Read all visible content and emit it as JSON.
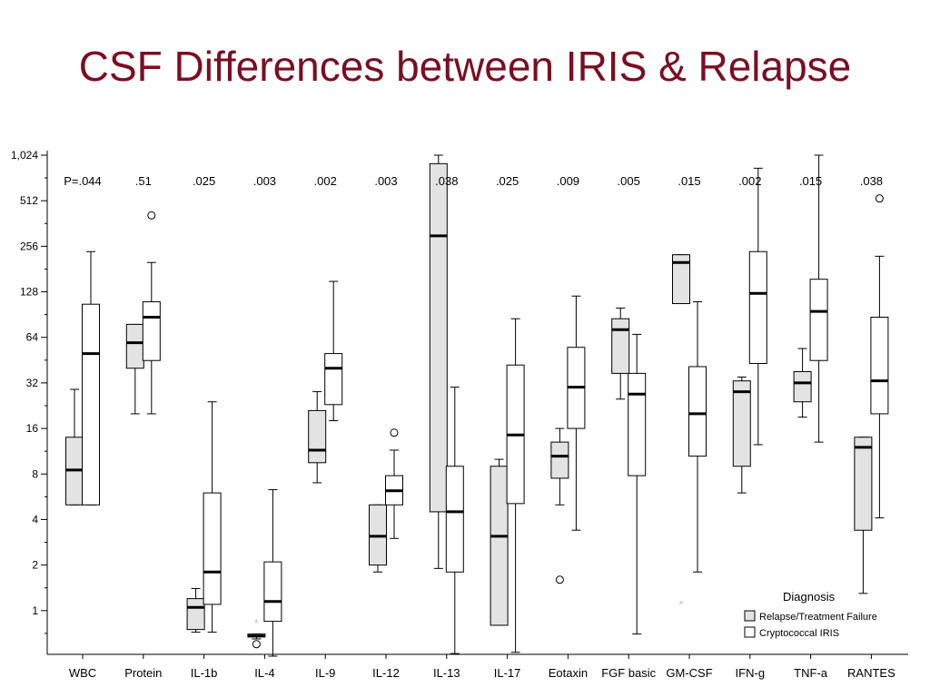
{
  "slide": {
    "title": "CSF Differences between IRIS & Relapse"
  },
  "chart_data": {
    "type": "boxplot",
    "y_scale": "log2",
    "ylim": [
      0.5,
      1024
    ],
    "y_ticks": [
      {
        "value": 1,
        "label": "1"
      },
      {
        "value": 2,
        "label": "2"
      },
      {
        "value": 4,
        "label": "4"
      },
      {
        "value": 8,
        "label": "8"
      },
      {
        "value": 16,
        "label": "16"
      },
      {
        "value": 32,
        "label": "32"
      },
      {
        "value": 64,
        "label": "64"
      },
      {
        "value": 128,
        "label": "128"
      },
      {
        "value": 256,
        "label": "256"
      },
      {
        "value": 512,
        "label": "512"
      },
      {
        "value": 1024,
        "label": "1,024"
      }
    ],
    "legend": {
      "title": "Diagnosis",
      "position": "bottom-right",
      "colors": [
        "#e3e3e3",
        "#ffffff"
      ]
    },
    "series_names": [
      "Relapse/Treatment Failure",
      "Cryptococcal IRIS"
    ],
    "categories": [
      "WBC",
      "Protein",
      "IL-1b",
      "IL-4",
      "IL-9",
      "IL-12",
      "IL-13",
      "IL-17",
      "Eotaxin",
      "FGF basic",
      "GM-CSF",
      "IFN-g",
      "TNF-a",
      "RANTES"
    ],
    "p_values": [
      "P=.044",
      ".51",
      ".025",
      ".003",
      ".002",
      ".003",
      ".038",
      ".025",
      ".009",
      ".005",
      ".015",
      ".002",
      ".015",
      ".038"
    ],
    "groups": [
      {
        "category": "WBC",
        "relapse": {
          "min": 5,
          "q1": 5,
          "median": 8.5,
          "q3": 14,
          "max": 29,
          "outliers": [],
          "extremes": []
        },
        "iris": {
          "min": 5,
          "q1": 5,
          "median": 50,
          "q3": 106,
          "max": 236,
          "outliers": [],
          "extremes": []
        }
      },
      {
        "category": "Protein",
        "relapse": {
          "min": 20,
          "q1": 40,
          "median": 59,
          "q3": 78,
          "max": 78,
          "outliers": [],
          "extremes": []
        },
        "iris": {
          "min": 20,
          "q1": 45,
          "median": 87,
          "q3": 110,
          "max": 200,
          "outliers": [
            410
          ],
          "extremes": []
        }
      },
      {
        "category": "IL-1b",
        "relapse": {
          "min": 0.72,
          "q1": 0.75,
          "median": 1.05,
          "q3": 1.2,
          "max": 1.4,
          "outliers": [],
          "extremes": []
        },
        "iris": {
          "min": 0.72,
          "q1": 1.1,
          "median": 1.8,
          "q3": 6,
          "max": 24,
          "outliers": [],
          "extremes": []
        }
      },
      {
        "category": "IL-4",
        "relapse": {
          "min": 0.65,
          "q1": 0.67,
          "median": 0.68,
          "q3": 0.7,
          "max": 0.7,
          "outliers": [
            0.6
          ],
          "extremes": [
            0.83
          ]
        },
        "iris": {
          "min": 0.5,
          "q1": 0.85,
          "median": 1.15,
          "q3": 2.1,
          "max": 6.3,
          "outliers": [],
          "extremes": []
        }
      },
      {
        "category": "IL-9",
        "relapse": {
          "min": 7,
          "q1": 9.5,
          "median": 11.5,
          "q3": 21,
          "max": 28,
          "outliers": [],
          "extremes": []
        },
        "iris": {
          "min": 18,
          "q1": 23,
          "median": 40,
          "q3": 50,
          "max": 150,
          "outliers": [],
          "extremes": []
        }
      },
      {
        "category": "IL-12",
        "relapse": {
          "min": 1.8,
          "q1": 2,
          "median": 3.1,
          "q3": 5,
          "max": 5,
          "outliers": [],
          "extremes": []
        },
        "iris": {
          "min": 3,
          "q1": 5,
          "median": 6.2,
          "q3": 7.8,
          "max": 11.5,
          "outliers": [
            15
          ],
          "extremes": []
        }
      },
      {
        "category": "IL-13",
        "relapse": {
          "min": 1.9,
          "q1": 4.5,
          "median": 300,
          "q3": 900,
          "max": 1024,
          "outliers": [],
          "extremes": []
        },
        "iris": {
          "min": 0.52,
          "q1": 1.8,
          "median": 4.5,
          "q3": 9,
          "max": 30,
          "outliers": [],
          "extremes": []
        }
      },
      {
        "category": "IL-17",
        "relapse": {
          "min": 0.8,
          "q1": 0.8,
          "median": 3.1,
          "q3": 9,
          "max": 10,
          "outliers": [],
          "extremes": []
        },
        "iris": {
          "min": 0.53,
          "q1": 5.1,
          "median": 14.5,
          "q3": 42,
          "max": 85,
          "outliers": [],
          "extremes": []
        }
      },
      {
        "category": "Eotaxin",
        "relapse": {
          "min": 5,
          "q1": 7.5,
          "median": 10.5,
          "q3": 13,
          "max": 16,
          "outliers": [
            1.6
          ],
          "extremes": []
        },
        "iris": {
          "min": 3.4,
          "q1": 16,
          "median": 30,
          "q3": 55,
          "max": 120,
          "outliers": [],
          "extremes": []
        }
      },
      {
        "category": "FGF basic",
        "relapse": {
          "min": 25,
          "q1": 37,
          "median": 72,
          "q3": 85,
          "max": 100,
          "outliers": [],
          "extremes": []
        },
        "iris": {
          "min": 0.7,
          "q1": 7.8,
          "median": 27,
          "q3": 37,
          "max": 67,
          "outliers": [],
          "extremes": []
        }
      },
      {
        "category": "GM-CSF",
        "relapse": {
          "min": 107,
          "q1": 107,
          "median": 200,
          "q3": 225,
          "max": 225,
          "outliers": [],
          "extremes": [
            1.1
          ]
        },
        "iris": {
          "min": 1.8,
          "q1": 10.5,
          "median": 20,
          "q3": 41,
          "max": 110,
          "outliers": [],
          "extremes": []
        }
      },
      {
        "category": "IFN-g",
        "relapse": {
          "min": 6,
          "q1": 9,
          "median": 28,
          "q3": 33,
          "max": 35,
          "outliers": [],
          "extremes": []
        },
        "iris": {
          "min": 12.5,
          "q1": 43,
          "median": 125,
          "q3": 236,
          "max": 840,
          "outliers": [],
          "extremes": []
        }
      },
      {
        "category": "TNF-a",
        "relapse": {
          "min": 19,
          "q1": 24,
          "median": 32,
          "q3": 38,
          "max": 54,
          "outliers": [],
          "extremes": []
        },
        "iris": {
          "min": 13,
          "q1": 45,
          "median": 95,
          "q3": 155,
          "max": 1024,
          "outliers": [],
          "extremes": []
        }
      },
      {
        "category": "RANTES",
        "relapse": {
          "min": 1.3,
          "q1": 3.4,
          "median": 12,
          "q3": 14,
          "max": 14,
          "outliers": [],
          "extremes": []
        },
        "iris": {
          "min": 4.1,
          "q1": 20,
          "median": 33,
          "q3": 87,
          "max": 220,
          "outliers": [
            530
          ],
          "extremes": []
        }
      }
    ]
  }
}
